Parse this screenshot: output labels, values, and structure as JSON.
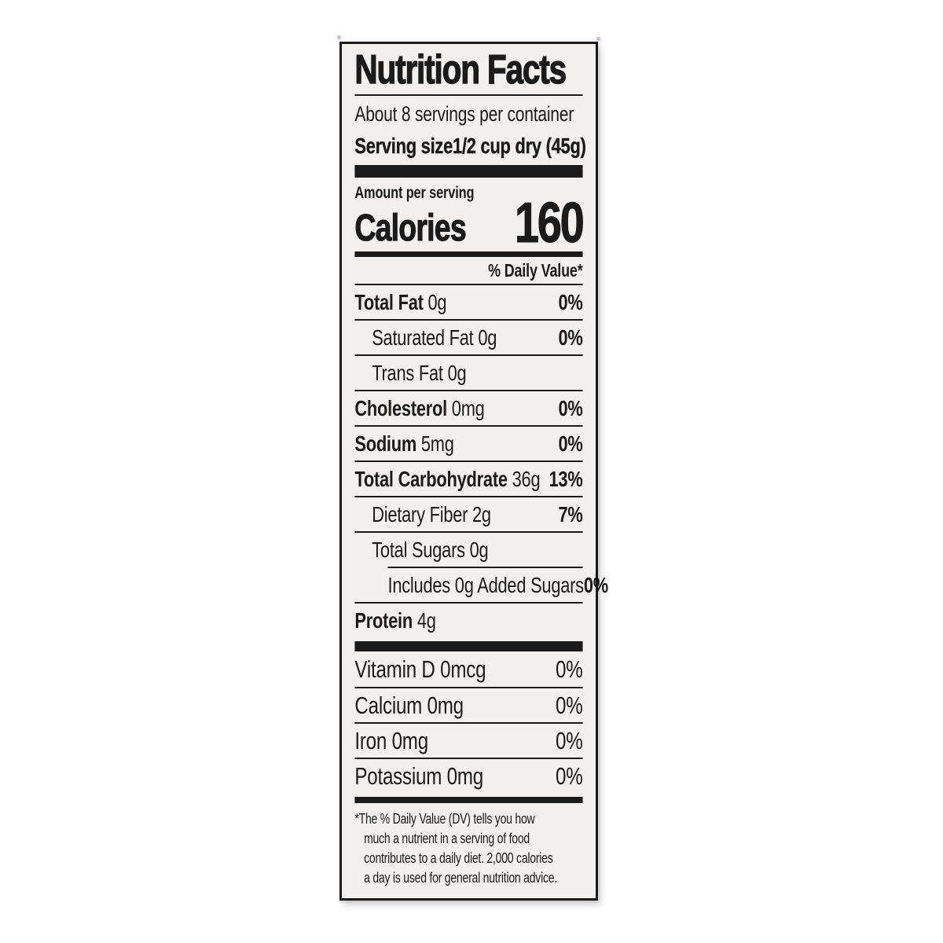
{
  "label": {
    "title": "Nutrition Facts",
    "servings_per_container": "About 8 servings per container",
    "serving_size": {
      "label": "Serving size",
      "value": "1/2 cup dry (45g)"
    },
    "amount_per_serving": "Amount per serving",
    "calories": {
      "label": "Calories",
      "value": "160"
    },
    "daily_value_header": "% Daily Value*",
    "nutrients": [
      {
        "name": "Total Fat",
        "amount": "0g",
        "dv": "0%",
        "style": "bold",
        "indent": 0
      },
      {
        "name": "Saturated Fat",
        "amount": "0g",
        "dv": "0%",
        "style": "regular",
        "indent": 1
      },
      {
        "name": "Trans Fat",
        "amount": "0g",
        "dv": "",
        "style": "regular",
        "indent": 1
      },
      {
        "name": "Cholesterol",
        "amount": "0mg",
        "dv": "0%",
        "style": "bold",
        "indent": 0
      },
      {
        "name": "Sodium",
        "amount": "5mg",
        "dv": "0%",
        "style": "bold",
        "indent": 0
      },
      {
        "name": "Total Carbohydrate",
        "amount": "36g",
        "dv": "13%",
        "style": "bold",
        "indent": 0
      },
      {
        "name": "Dietary Fiber",
        "amount": "2g",
        "dv": "7%",
        "style": "regular",
        "indent": 1
      },
      {
        "name": "Total Sugars",
        "amount": "0g",
        "dv": "",
        "style": "regular",
        "indent": 1
      },
      {
        "name": "Includes 0g Added Sugars",
        "amount": "",
        "dv": "0%",
        "style": "regular",
        "indent": 2,
        "indent_rule": true
      },
      {
        "name": "Protein",
        "amount": "4g",
        "dv": "",
        "style": "bold",
        "indent": 0
      }
    ],
    "micronutrients": [
      {
        "name": "Vitamin D",
        "amount": "0mcg",
        "dv": "0%"
      },
      {
        "name": "Calcium",
        "amount": "0mg",
        "dv": "0%"
      },
      {
        "name": "Iron",
        "amount": "0mg",
        "dv": "0%"
      },
      {
        "name": "Potassium",
        "amount": "0mg",
        "dv": "0%"
      }
    ],
    "footnote_lines": [
      "*The % Daily Value (DV) tells you how",
      "much a nutrient in a serving of food",
      "contributes to a daily diet. 2,000 calories",
      "a day is used for general nutrition advice."
    ],
    "colors": {
      "ink": "#1b1b1b",
      "label_background": "#f1f0ee"
    }
  }
}
